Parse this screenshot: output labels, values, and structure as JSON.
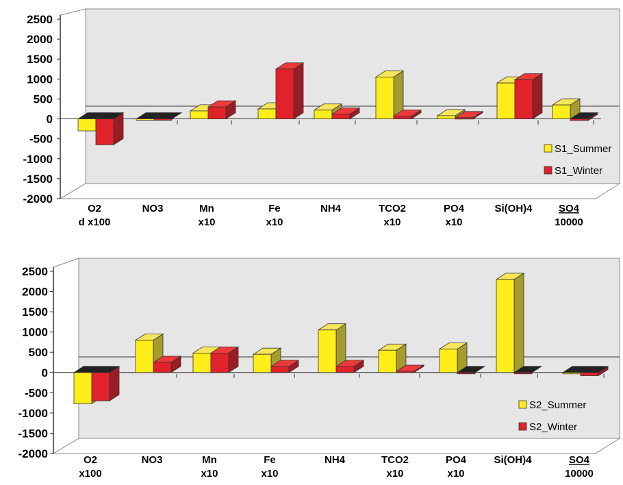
{
  "colors": {
    "summer_front": "#ffee1a",
    "summer_top": "#f6e65a",
    "summer_side": "#a59b2e",
    "winter_front": "#e2222a",
    "winter_top": "#ee3a3a",
    "winter_side": "#9a1c24",
    "zero_top": "#222222",
    "wall": "#e6e6e6",
    "floor": "#e6e6e6"
  },
  "chart_data": [
    {
      "type": "bar",
      "ylim": [
        -2000,
        2500
      ],
      "yticks": [
        "2500",
        "2000",
        "1500",
        "1000",
        "500",
        "0",
        "-500",
        "-1000",
        "-1500",
        "-2000"
      ],
      "categories": [
        {
          "line1": "O2",
          "line2": "d x100"
        },
        {
          "line1": "NO3",
          "line2": ""
        },
        {
          "line1": "Mn",
          "line2": "x10"
        },
        {
          "line1": "Fe",
          "line2": "x10"
        },
        {
          "line1": "NH4",
          "line2": ""
        },
        {
          "line1": "TCO2",
          "line2": "x10"
        },
        {
          "line1": "PO4",
          "line2": "x10"
        },
        {
          "line1": "Si(OH)4",
          "line2": ""
        },
        {
          "line1": "SO4",
          "line2": "10000",
          "underline": true
        }
      ],
      "series": [
        {
          "name": "S1_Summer",
          "values": [
            -300,
            0,
            200,
            250,
            220,
            1050,
            80,
            900,
            350
          ]
        },
        {
          "name": "S1_Winter",
          "values": [
            -650,
            0,
            300,
            1250,
            120,
            70,
            30,
            980,
            -40
          ]
        }
      ],
      "legend": "bottom-right",
      "grid": false
    },
    {
      "type": "bar",
      "ylim": [
        -2000,
        2500
      ],
      "yticks": [
        "2500",
        "2000",
        "1500",
        "1000",
        "500",
        "0",
        "-500",
        "-1000",
        "-1500",
        "-2000"
      ],
      "categories": [
        {
          "line1": "O2",
          "line2": "x100"
        },
        {
          "line1": "NO3",
          "line2": ""
        },
        {
          "line1": "Mn",
          "line2": "x10"
        },
        {
          "line1": "Fe",
          "line2": "x10"
        },
        {
          "line1": "NH4",
          "line2": ""
        },
        {
          "line1": "TCO2",
          "line2": "x10"
        },
        {
          "line1": "PO4",
          "line2": "x10"
        },
        {
          "line1": "Si(OH)4",
          "line2": ""
        },
        {
          "line1": "SO4",
          "line2": "10000",
          "underline": true
        }
      ],
      "series": [
        {
          "name": "S2_Summer",
          "values": [
            -770,
            800,
            480,
            450,
            1050,
            550,
            580,
            2300,
            0
          ]
        },
        {
          "name": "S2_Winter",
          "values": [
            -700,
            250,
            480,
            150,
            150,
            30,
            0,
            0,
            -80
          ]
        }
      ],
      "legend": "bottom-right",
      "grid": false
    }
  ]
}
